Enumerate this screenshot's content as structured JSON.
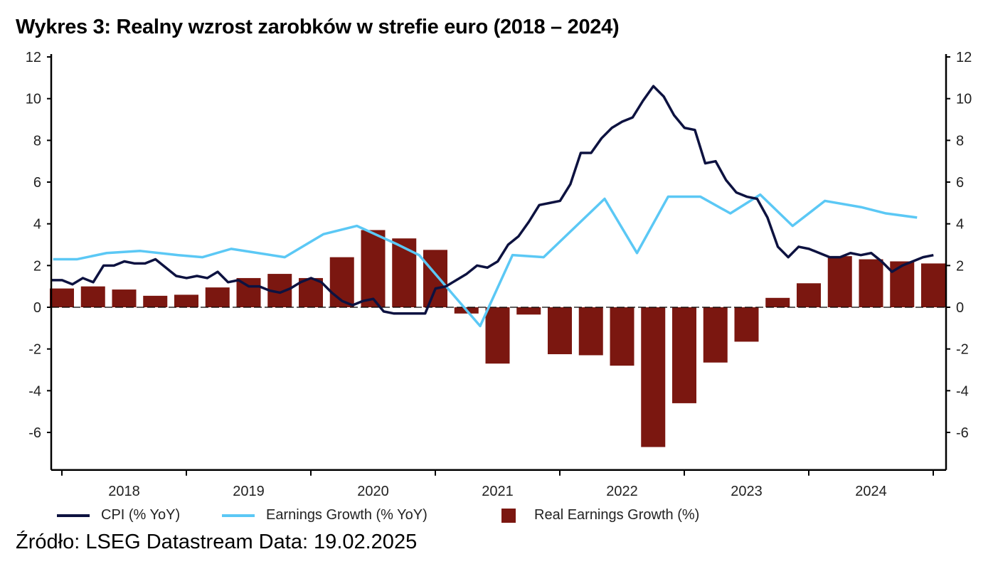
{
  "title": "Wykres 3: Realny wzrost zarobków w strefie euro (2018 – 2024)",
  "source": "Źródło: LSEG Datastream Data: 19.02.2025",
  "chart_data": {
    "type": "bar+line",
    "title": "Wykres 3: Realny wzrost zarobków w strefie euro (2018 – 2024)",
    "ylim": [
      -7.8,
      12
    ],
    "yticks": [
      -6,
      -4,
      -2,
      0,
      2,
      4,
      6,
      8,
      10,
      12
    ],
    "y_axes": [
      "left",
      "right"
    ],
    "xlim": [
      2017.92,
      2025.1
    ],
    "x_tick_labels": [
      "2018",
      "2019",
      "2020",
      "2021",
      "2022",
      "2023",
      "2024"
    ],
    "grid": false,
    "legend_position": "bottom",
    "series": [
      {
        "name": "CPI (% YoY)",
        "kind": "line",
        "color": "#0d1240",
        "frequency": "monthly",
        "start": "2017-12",
        "values": [
          1.3,
          1.3,
          1.1,
          1.4,
          1.2,
          2.0,
          2.0,
          2.2,
          2.1,
          2.1,
          2.3,
          1.9,
          1.5,
          1.4,
          1.5,
          1.4,
          1.7,
          1.2,
          1.3,
          1.0,
          1.0,
          0.8,
          0.7,
          0.9,
          1.2,
          1.4,
          1.2,
          0.7,
          0.3,
          0.1,
          0.3,
          0.4,
          -0.2,
          -0.3,
          -0.3,
          -0.3,
          -0.3,
          0.9,
          1.0,
          1.3,
          1.6,
          2.0,
          1.9,
          2.2,
          3.0,
          3.4,
          4.1,
          4.9,
          5.0,
          5.1,
          5.9,
          7.4,
          7.4,
          8.1,
          8.6,
          8.9,
          9.1,
          9.9,
          10.6,
          10.1,
          9.2,
          8.6,
          8.5,
          6.9,
          7.0,
          6.1,
          5.5,
          5.3,
          5.2,
          4.3,
          2.9,
          2.4,
          2.9,
          2.8,
          2.6,
          2.4,
          2.4,
          2.6,
          2.5,
          2.6,
          2.2,
          1.7,
          2.0,
          2.2,
          2.4,
          2.5
        ]
      },
      {
        "name": "Earnings Growth (% YoY)",
        "kind": "line",
        "color": "#5bc8f5",
        "x": [
          2017.93,
          2018.12,
          2018.36,
          2018.63,
          2018.93,
          2019.13,
          2019.36,
          2019.79,
          2020.1,
          2020.37,
          2020.7,
          2020.87,
          2021.36,
          2021.62,
          2021.87,
          2022.36,
          2022.62,
          2022.87,
          2023.13,
          2023.37,
          2023.61,
          2023.87,
          2024.13,
          2024.42,
          2024.62,
          2024.87
        ],
        "values": [
          2.3,
          2.3,
          2.6,
          2.7,
          2.5,
          2.4,
          2.8,
          2.4,
          3.5,
          3.9,
          3.0,
          2.5,
          -0.9,
          2.5,
          2.4,
          5.2,
          2.6,
          5.3,
          5.3,
          4.5,
          5.4,
          3.9,
          5.1,
          4.8,
          4.5,
          4.3
        ]
      },
      {
        "name": "Real Earnings Growth (%)",
        "kind": "bar",
        "color": "#7b1710",
        "frequency": "quarterly",
        "start": 2018.0,
        "values": [
          0.9,
          1.0,
          0.85,
          0.55,
          0.6,
          0.95,
          1.4,
          1.6,
          1.4,
          2.4,
          3.7,
          3.3,
          2.75,
          -0.3,
          -2.7,
          -0.35,
          -2.25,
          -2.3,
          -2.8,
          -6.7,
          -4.6,
          -2.65,
          -1.65,
          0.45,
          1.15,
          2.45,
          2.3,
          2.2,
          2.1
        ]
      }
    ]
  }
}
